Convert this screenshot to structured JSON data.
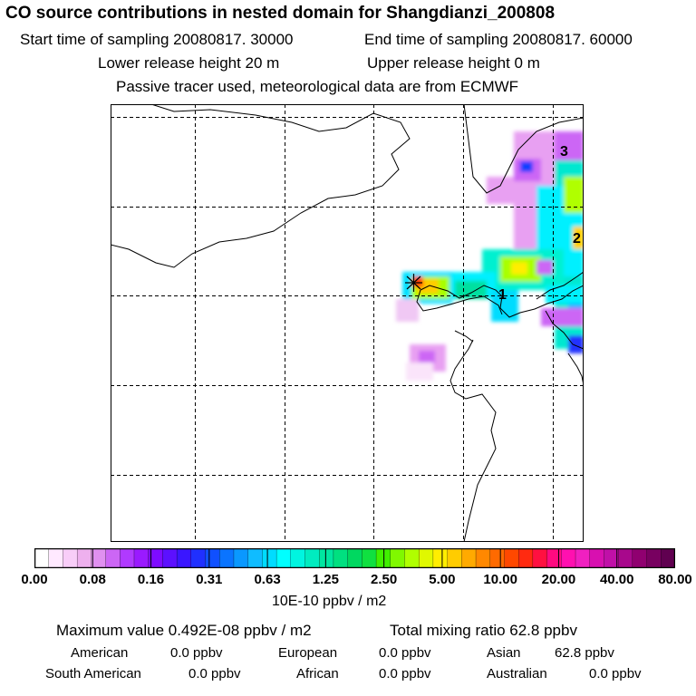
{
  "header": {
    "title": "CO  source contributions in nested domain for Shangdianzi_200808",
    "start_label": "Start time of sampling 20080817. 30000",
    "end_label": "End time of sampling 20080817. 60000",
    "lower_label": "Lower release height   20 m",
    "upper_label": "Upper release height    0 m",
    "tracer_note": "Passive tracer used, meteorological data are from ECMWF"
  },
  "map": {
    "markers": [
      {
        "label": "1"
      },
      {
        "label": "2"
      },
      {
        "label": "3"
      }
    ],
    "receptor": "star"
  },
  "colorbar": {
    "tick_labels": [
      "0.00",
      "0.08",
      "0.16",
      "0.31",
      "0.63",
      "1.25",
      "2.50",
      "5.00",
      "10.00",
      "20.00",
      "40.00",
      "80.00"
    ],
    "unit": "10E-10 ppbv / m2",
    "colors": [
      "#ffffff",
      "#ffe9ff",
      "#f8cdf8",
      "#eeb0ee",
      "#e090f0",
      "#cc66f5",
      "#b03aff",
      "#9a1aff",
      "#7e0bff",
      "#5c10ff",
      "#3a16ff",
      "#2030ff",
      "#1050ff",
      "#0a74ff",
      "#0a98ff",
      "#10bcff",
      "#00dcff",
      "#00ffff",
      "#00f5e0",
      "#00ecc0",
      "#00e6a0",
      "#00e080",
      "#00d860",
      "#10e040",
      "#40f000",
      "#80f800",
      "#b0ff00",
      "#e0f800",
      "#ffee00",
      "#ffcc00",
      "#ffaa00",
      "#ff8800",
      "#ff6a00",
      "#ff4800",
      "#ff2a10",
      "#ff1040",
      "#ff0a80",
      "#ff10b0",
      "#f020c0",
      "#d810b0",
      "#c010a8",
      "#a8088c",
      "#900070",
      "#780060",
      "#600050"
    ]
  },
  "footer": {
    "max_value": "Maximum value  0.492E-08 ppbv / m2",
    "total": "Total mixing ratio       62.8 ppbv",
    "american_label": "American",
    "american_value": "0.0 ppbv",
    "european_label": "European",
    "european_value": "0.0 ppbv",
    "asian_label": "Asian",
    "asian_value": "62.8 ppbv",
    "south_american_label": "South American",
    "south_american_value": "0.0 ppbv",
    "african_label": "African",
    "african_value": "0.0 ppbv",
    "australian_label": "Australian",
    "australian_value": "0.0 ppbv"
  }
}
